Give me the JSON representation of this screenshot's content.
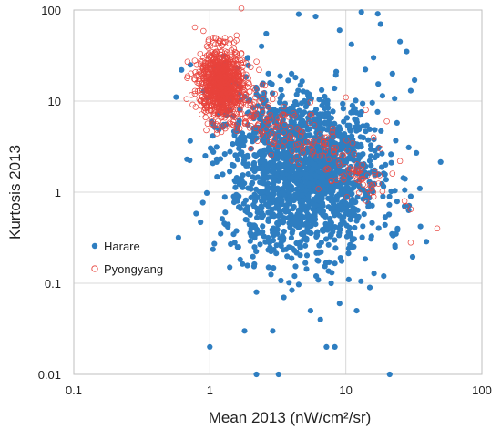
{
  "chart_data": {
    "type": "scatter",
    "xlabel": "Mean 2013 (nW/cm²/sr)",
    "ylabel": "Kurtosis 2013",
    "xscale": "log",
    "yscale": "log",
    "xlim": [
      0.1,
      100
    ],
    "ylim": [
      0.01,
      100
    ],
    "xticks": [
      "0.1",
      "1",
      "10",
      "100"
    ],
    "yticks": [
      "0.01",
      "0.1",
      "1",
      "10",
      "100"
    ],
    "grid": true,
    "legend_position": "left-middle",
    "series": [
      {
        "name": "Harare",
        "marker": "filled-circle",
        "color": "#2E7EC1",
        "points": [
          [
            0.62,
            22
          ],
          [
            0.72,
            25
          ],
          [
            0.95,
            0.98
          ],
          [
            1.0,
            0.02
          ],
          [
            0.68,
            2.3
          ],
          [
            1.3,
            0.6
          ],
          [
            1.8,
            0.03
          ],
          [
            2.2,
            0.01
          ],
          [
            3.2,
            0.01
          ],
          [
            2.9,
            0.03
          ],
          [
            7.2,
            0.02
          ],
          [
            8.3,
            0.02
          ],
          [
            21,
            0.01
          ],
          [
            30,
            0.9
          ],
          [
            27,
            0.7
          ],
          [
            33,
            2.7
          ],
          [
            29,
            3.1
          ],
          [
            35,
            1.1
          ],
          [
            30,
            13
          ],
          [
            28,
            35
          ],
          [
            32,
            17
          ],
          [
            25,
            45
          ],
          [
            18,
            70
          ],
          [
            13,
            95
          ],
          [
            6,
            85
          ],
          [
            4.5,
            90
          ],
          [
            2.6,
            55
          ],
          [
            2.4,
            40
          ],
          [
            1.9,
            30
          ],
          [
            9,
            60
          ],
          [
            11,
            42
          ],
          [
            16,
            30
          ],
          [
            22,
            20
          ],
          [
            2.2,
            0.08
          ],
          [
            3.5,
            0.07
          ],
          [
            5.5,
            0.05
          ],
          [
            6.5,
            0.04
          ],
          [
            9,
            0.06
          ],
          [
            12,
            0.05
          ],
          [
            15,
            0.09
          ],
          [
            19,
            0.12
          ],
          [
            23,
            0.25
          ],
          [
            24,
            0.4
          ],
          [
            1.6,
            0.25
          ],
          [
            1.4,
            0.15
          ],
          [
            2.7,
            0.15
          ],
          [
            4.2,
            0.12
          ],
          [
            7.8,
            0.1
          ],
          [
            10.5,
            0.11
          ],
          [
            1.2,
            0.35
          ],
          [
            1.5,
            0.9
          ]
        ]
      },
      {
        "name": "Pyongyang",
        "marker": "open-circle",
        "color": "#E8433C",
        "points": [
          [
            0.95,
            40
          ],
          [
            1.1,
            42
          ],
          [
            1.3,
            35
          ],
          [
            1.5,
            25
          ],
          [
            1.7,
            18
          ],
          [
            2.1,
            14
          ],
          [
            1.2,
            12
          ],
          [
            1.0,
            15
          ],
          [
            0.85,
            10
          ],
          [
            0.9,
            30
          ],
          [
            1.4,
            8
          ],
          [
            1.9,
            9
          ],
          [
            2.6,
            6
          ],
          [
            3.5,
            4.5
          ],
          [
            4.8,
            3
          ],
          [
            6.5,
            2.5
          ],
          [
            9,
            2
          ],
          [
            12,
            1.7
          ],
          [
            16,
            4
          ],
          [
            20,
            6
          ],
          [
            25,
            2.2
          ],
          [
            28,
            0.7
          ],
          [
            30,
            0.65
          ],
          [
            27,
            0.8
          ],
          [
            47,
            0.4
          ],
          [
            30,
            0.28
          ],
          [
            15,
            1.2
          ],
          [
            18,
            3
          ],
          [
            1.1,
            20
          ],
          [
            1.25,
            16
          ],
          [
            0.8,
            25
          ],
          [
            1.6,
            28
          ],
          [
            2.3,
            22
          ],
          [
            3,
            12
          ],
          [
            1.05,
            6
          ],
          [
            1.3,
            5
          ],
          [
            2.0,
            3
          ],
          [
            5.5,
            7
          ],
          [
            8,
            5
          ],
          [
            10,
            11
          ],
          [
            14,
            8
          ],
          [
            22,
            1.6
          ]
        ]
      }
    ]
  }
}
